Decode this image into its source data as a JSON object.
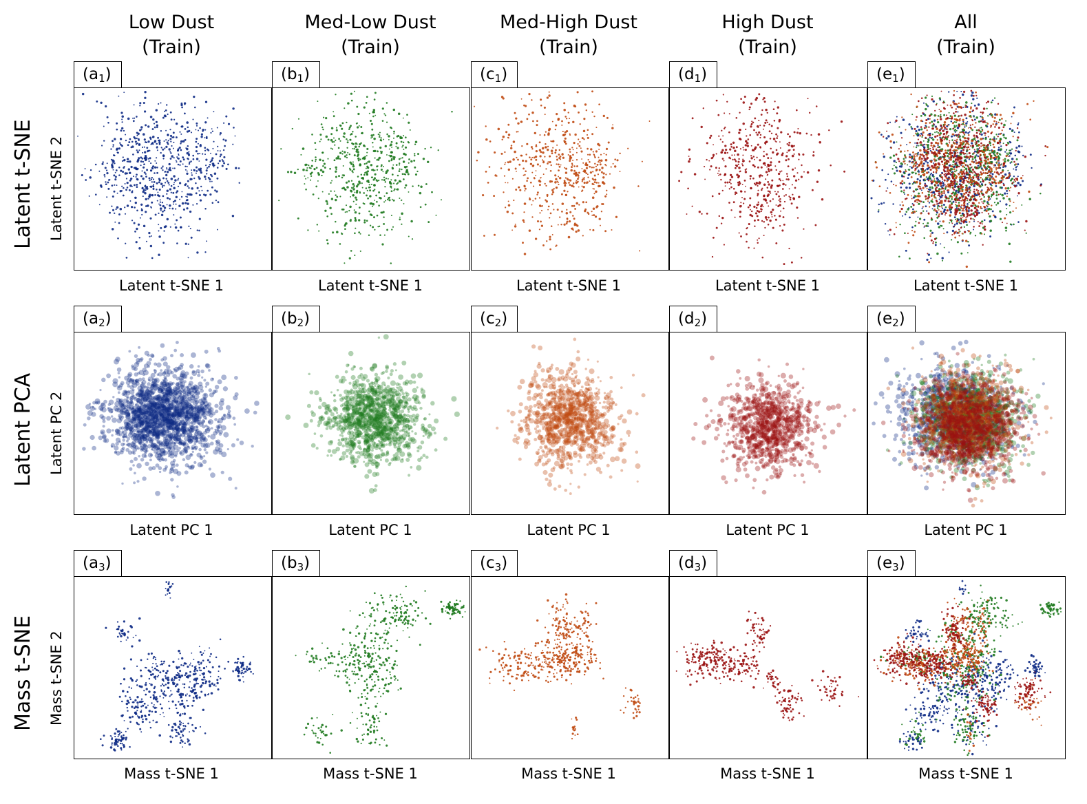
{
  "figure": {
    "column_titles": [
      {
        "line1": "Low Dust",
        "line2": "(Train)"
      },
      {
        "line1": "Med-Low Dust",
        "line2": "(Train)"
      },
      {
        "line1": "Med-High Dust",
        "line2": "(Train)"
      },
      {
        "line1": "High Dust",
        "line2": "(Train)"
      },
      {
        "line1": "All",
        "line2": "(Train)"
      }
    ],
    "row_titles": [
      "Latent t-SNE",
      "Latent PCA",
      "Mass t-SNE"
    ]
  },
  "colors": {
    "low": "#0d2a85",
    "med_low": "#1f7a1f",
    "med_high": "#c04a12",
    "high": "#9a1212"
  },
  "chart_data": [
    {
      "type": "scatter",
      "row": "Latent t-SNE",
      "xlabel": "Latent t-SNE 1",
      "ylabel": "Latent t-SNE 2",
      "panels": [
        {
          "tag": "a",
          "sub": "1",
          "series": "low",
          "count": 750
        },
        {
          "tag": "b",
          "sub": "1",
          "series": "med_low",
          "count": 600
        },
        {
          "tag": "c",
          "sub": "1",
          "series": "med_high",
          "count": 560
        },
        {
          "tag": "d",
          "sub": "1",
          "series": "high",
          "count": 520
        },
        {
          "tag": "e",
          "sub": "1",
          "series": "all",
          "count": 2400
        }
      ]
    },
    {
      "type": "scatter",
      "row": "Latent PCA",
      "xlabel": "Latent PC 1",
      "ylabel": "Latent PC 2",
      "panels": [
        {
          "tag": "a",
          "sub": "2",
          "series": "low",
          "count": 1700
        },
        {
          "tag": "b",
          "sub": "2",
          "series": "med_low",
          "count": 1100
        },
        {
          "tag": "c",
          "sub": "2",
          "series": "med_high",
          "count": 950
        },
        {
          "tag": "d",
          "sub": "2",
          "series": "high",
          "count": 950
        },
        {
          "tag": "e",
          "sub": "2",
          "series": "all",
          "count": 4000
        }
      ]
    },
    {
      "type": "scatter",
      "row": "Mass t-SNE",
      "xlabel": "Mass t-SNE 1",
      "ylabel": "Mass t-SNE 2",
      "panels": [
        {
          "tag": "a",
          "sub": "3",
          "series": "low",
          "count": 600
        },
        {
          "tag": "b",
          "sub": "3",
          "series": "med_low",
          "count": 520
        },
        {
          "tag": "c",
          "sub": "3",
          "series": "med_high",
          "count": 480
        },
        {
          "tag": "d",
          "sub": "3",
          "series": "high",
          "count": 420
        },
        {
          "tag": "e",
          "sub": "3",
          "series": "all",
          "count": 2000
        }
      ]
    }
  ]
}
